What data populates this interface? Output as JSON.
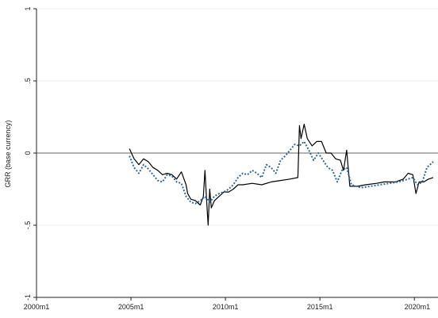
{
  "chart_data": {
    "type": "line",
    "title": "",
    "xlabel": "",
    "ylabel": "GRR (base currency)",
    "xlim": [
      "2000m1",
      "2021m1"
    ],
    "ylim": [
      -1,
      1
    ],
    "x_ticks": [
      "2000m1",
      "2005m1",
      "2010m1",
      "2015m1",
      "2020m1"
    ],
    "y_ticks": [
      "-1",
      "-.5",
      "0",
      ".5",
      "1"
    ],
    "y_tick_values": [
      -1,
      -0.5,
      0,
      0.5,
      1
    ],
    "reference_line": 0,
    "grid": true,
    "legend": "none",
    "colors": {
      "series_solid": "#000000",
      "series_dotted": "#2e6a9e",
      "reference_line": "#666666",
      "grid": "#eeeeee",
      "axis": "#222222"
    },
    "series": [
      {
        "style": "solid",
        "points": [
          [
            "2004m12",
            0.03
          ],
          [
            "2005m3",
            -0.04
          ],
          [
            "2005m6",
            -0.08
          ],
          [
            "2005m9",
            -0.04
          ],
          [
            "2005m12",
            -0.06
          ],
          [
            "2006m3",
            -0.1
          ],
          [
            "2006m6",
            -0.12
          ],
          [
            "2006m9",
            -0.15
          ],
          [
            "2006m12",
            -0.14
          ],
          [
            "2007m3",
            -0.15
          ],
          [
            "2007m6",
            -0.18
          ],
          [
            "2007m9",
            -0.13
          ],
          [
            "2007m12",
            -0.22
          ],
          [
            "2008m1",
            -0.28
          ],
          [
            "2008m3",
            -0.32
          ],
          [
            "2008m6",
            -0.33
          ],
          [
            "2008m9",
            -0.36
          ],
          [
            "2008m11",
            -0.3
          ],
          [
            "2008m12",
            -0.12
          ],
          [
            "2009m1",
            -0.32
          ],
          [
            "2009m2",
            -0.5
          ],
          [
            "2009m3",
            -0.25
          ],
          [
            "2009m4",
            -0.38
          ],
          [
            "2009m6",
            -0.33
          ],
          [
            "2009m9",
            -0.3
          ],
          [
            "2009m12",
            -0.27
          ],
          [
            "2010m3",
            -0.27
          ],
          [
            "2010m6",
            -0.25
          ],
          [
            "2010m9",
            -0.22
          ],
          [
            "2010m12",
            -0.22
          ],
          [
            "2011m6",
            -0.21
          ],
          [
            "2011m12",
            -0.22
          ],
          [
            "2012m6",
            -0.2
          ],
          [
            "2012m12",
            -0.19
          ],
          [
            "2013m6",
            -0.18
          ],
          [
            "2013m11",
            -0.17
          ],
          [
            "2013m12",
            0.19
          ],
          [
            "2014m1",
            0.1
          ],
          [
            "2014m3",
            0.2
          ],
          [
            "2014m5",
            0.1
          ],
          [
            "2014m8",
            0.05
          ],
          [
            "2014m11",
            0.08
          ],
          [
            "2015m2",
            0.08
          ],
          [
            "2015m5",
            0.0
          ],
          [
            "2015m8",
            0.0
          ],
          [
            "2015m11",
            -0.04
          ],
          [
            "2016m2",
            -0.05
          ],
          [
            "2016m4",
            -0.12
          ],
          [
            "2016m6",
            0.02
          ],
          [
            "2016m8",
            -0.23
          ],
          [
            "2017m1",
            -0.23
          ],
          [
            "2017m6",
            -0.22
          ],
          [
            "2018m1",
            -0.21
          ],
          [
            "2018m6",
            -0.2
          ],
          [
            "2019m1",
            -0.2
          ],
          [
            "2019m6",
            -0.18
          ],
          [
            "2019m9",
            -0.14
          ],
          [
            "2019m12",
            -0.15
          ],
          [
            "2020m2",
            -0.28
          ],
          [
            "2020m4",
            -0.2
          ],
          [
            "2020m7",
            -0.2
          ],
          [
            "2020m10",
            -0.18
          ],
          [
            "2021m1",
            -0.17
          ]
        ]
      },
      {
        "style": "dotted",
        "points": [
          [
            "2004m12",
            -0.02
          ],
          [
            "2005m3",
            -0.1
          ],
          [
            "2005m6",
            -0.14
          ],
          [
            "2005m9",
            -0.08
          ],
          [
            "2005m12",
            -0.11
          ],
          [
            "2006m3",
            -0.15
          ],
          [
            "2006m6",
            -0.19
          ],
          [
            "2006m9",
            -0.2
          ],
          [
            "2006m12",
            -0.15
          ],
          [
            "2007m3",
            -0.16
          ],
          [
            "2007m6",
            -0.2
          ],
          [
            "2007m9",
            -0.21
          ],
          [
            "2007m12",
            -0.3
          ],
          [
            "2008m3",
            -0.34
          ],
          [
            "2008m6",
            -0.35
          ],
          [
            "2008m9",
            -0.33
          ],
          [
            "2008m12",
            -0.3
          ],
          [
            "2009m3",
            -0.34
          ],
          [
            "2009m6",
            -0.3
          ],
          [
            "2009m9",
            -0.28
          ],
          [
            "2009m12",
            -0.27
          ],
          [
            "2010m3",
            -0.25
          ],
          [
            "2010m6",
            -0.22
          ],
          [
            "2010m9",
            -0.17
          ],
          [
            "2010m12",
            -0.14
          ],
          [
            "2011m3",
            -0.15
          ],
          [
            "2011m6",
            -0.12
          ],
          [
            "2011m9",
            -0.14
          ],
          [
            "2011m12",
            -0.17
          ],
          [
            "2012m3",
            -0.08
          ],
          [
            "2012m6",
            -0.1
          ],
          [
            "2012m9",
            -0.14
          ],
          [
            "2012m12",
            -0.05
          ],
          [
            "2013m3",
            -0.02
          ],
          [
            "2013m6",
            0.02
          ],
          [
            "2013m9",
            0.06
          ],
          [
            "2013m12",
            0.05
          ],
          [
            "2014m3",
            0.08
          ],
          [
            "2014m6",
            0.02
          ],
          [
            "2014m9",
            -0.05
          ],
          [
            "2014m12",
            0.0
          ],
          [
            "2015m3",
            -0.05
          ],
          [
            "2015m6",
            -0.1
          ],
          [
            "2015m9",
            -0.12
          ],
          [
            "2015m12",
            -0.2
          ],
          [
            "2016m3",
            -0.12
          ],
          [
            "2016m6",
            -0.1
          ],
          [
            "2016m9",
            -0.22
          ],
          [
            "2017m3",
            -0.24
          ],
          [
            "2017m9",
            -0.23
          ],
          [
            "2018m3",
            -0.22
          ],
          [
            "2018m9",
            -0.21
          ],
          [
            "2019m3",
            -0.2
          ],
          [
            "2019m9",
            -0.18
          ],
          [
            "2019m12",
            -0.17
          ],
          [
            "2020m3",
            -0.22
          ],
          [
            "2020m6",
            -0.2
          ],
          [
            "2020m9",
            -0.1
          ],
          [
            "2021m1",
            -0.06
          ]
        ]
      }
    ]
  }
}
